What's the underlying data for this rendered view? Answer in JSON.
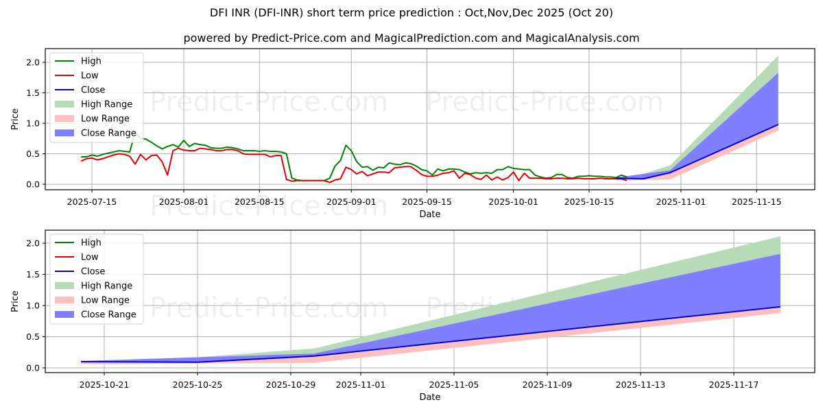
{
  "header": {
    "title": "DFI INR (DFI-INR) short term price prediction : Oct,Nov,Dec 2025 (Oct 20)",
    "subtitle": "powered by Predict-Price.com and MagicalPrediction.com and MagicalAnalysis.com"
  },
  "watermark": "Predict-Price.com",
  "legend": [
    "High",
    "Low",
    "Close",
    "High Range",
    "Low Range",
    "Close Range"
  ],
  "colors": {
    "high": "#008000",
    "low": "#e00000",
    "close": "#0000cc",
    "high_range": "#b7dbb7",
    "low_range": "#ffbfbf",
    "close_range": "#7f7fff"
  },
  "chart_data": [
    {
      "type": "line",
      "title": "DFI INR (DFI-INR) short term price prediction : Oct,Nov,Dec 2025 (Oct 20)",
      "xlabel": "Date",
      "ylabel": "Price",
      "ylim": [
        -0.08,
        2.2
      ],
      "yticks": [
        "0.0",
        "0.5",
        "1.0",
        "1.5",
        "2.0"
      ],
      "xticks": [
        "2025-07-15",
        "2025-08-01",
        "2025-08-15",
        "2025-09-01",
        "2025-09-15",
        "2025-10-01",
        "2025-10-15",
        "2025-11-01",
        "2025-11-15"
      ],
      "grid": true,
      "legend_position": "upper left",
      "series": [
        {
          "name": "High",
          "x_start": "2025-07-13",
          "step_days": 1,
          "values": [
            0.45,
            0.45,
            0.48,
            0.46,
            0.49,
            0.51,
            0.53,
            0.55,
            0.54,
            0.53,
            0.85,
            0.75,
            0.74,
            0.69,
            0.63,
            0.58,
            0.62,
            0.65,
            0.61,
            0.72,
            0.62,
            0.67,
            0.65,
            0.64,
            0.6,
            0.59,
            0.59,
            0.61,
            0.6,
            0.58,
            0.55,
            0.55,
            0.55,
            0.54,
            0.55,
            0.54,
            0.54,
            0.53,
            0.5,
            0.1,
            0.07,
            0.06,
            0.06,
            0.06,
            0.06,
            0.06,
            0.1,
            0.3,
            0.39,
            0.64,
            0.55,
            0.37,
            0.28,
            0.29,
            0.23,
            0.28,
            0.27,
            0.35,
            0.33,
            0.32,
            0.35,
            0.34,
            0.3,
            0.24,
            0.22,
            0.15,
            0.25,
            0.22,
            0.25,
            0.25,
            0.24,
            0.2,
            0.17,
            0.19,
            0.18,
            0.19,
            0.18,
            0.24,
            0.24,
            0.29,
            0.26,
            0.25,
            0.24,
            0.24,
            0.15,
            0.12,
            0.1,
            0.11,
            0.16,
            0.16,
            0.11,
            0.1,
            0.13,
            0.13,
            0.14,
            0.13,
            0.13,
            0.12,
            0.12,
            0.11,
            0.15,
            0.12
          ]
        },
        {
          "name": "Low",
          "x_start": "2025-07-13",
          "step_days": 1,
          "values": [
            0.38,
            0.42,
            0.43,
            0.4,
            0.42,
            0.45,
            0.48,
            0.5,
            0.49,
            0.46,
            0.33,
            0.49,
            0.4,
            0.47,
            0.48,
            0.37,
            0.15,
            0.55,
            0.59,
            0.56,
            0.55,
            0.55,
            0.59,
            0.58,
            0.57,
            0.55,
            0.55,
            0.57,
            0.57,
            0.55,
            0.5,
            0.49,
            0.49,
            0.49,
            0.49,
            0.45,
            0.47,
            0.47,
            0.08,
            0.05,
            0.06,
            0.06,
            0.06,
            0.06,
            0.06,
            0.06,
            0.03,
            0.07,
            0.09,
            0.28,
            0.24,
            0.17,
            0.21,
            0.14,
            0.17,
            0.2,
            0.2,
            0.19,
            0.27,
            0.28,
            0.29,
            0.29,
            0.23,
            0.16,
            0.13,
            0.13,
            0.15,
            0.18,
            0.19,
            0.22,
            0.1,
            0.18,
            0.16,
            0.1,
            0.08,
            0.15,
            0.07,
            0.12,
            0.07,
            0.11,
            0.2,
            0.06,
            0.18,
            0.1,
            0.1,
            0.1,
            0.09,
            0.09,
            0.1,
            0.1,
            0.09,
            0.09,
            0.1,
            0.09,
            0.09,
            0.09,
            0.1,
            0.09,
            0.09,
            0.09,
            0.09,
            0.06
          ]
        },
        {
          "name": "Close",
          "x": [
            "2025-10-20",
            "2025-10-25",
            "2025-10-30",
            "2025-11-19"
          ],
          "values": [
            0.1,
            0.09,
            0.19,
            0.98
          ]
        },
        {
          "name": "High Range",
          "x": [
            "2025-10-20",
            "2025-10-25",
            "2025-10-30",
            "2025-11-19"
          ],
          "lower": [
            0.09,
            0.15,
            0.28,
            1.83
          ],
          "upper": [
            0.11,
            0.17,
            0.31,
            2.11
          ]
        },
        {
          "name": "Low Range",
          "x": [
            "2025-10-20",
            "2025-10-25",
            "2025-10-30",
            "2025-11-19"
          ],
          "lower": [
            0.06,
            0.07,
            0.08,
            0.88
          ],
          "upper": [
            0.1,
            0.09,
            0.19,
            0.98
          ]
        },
        {
          "name": "Close Range",
          "x": [
            "2025-10-20",
            "2025-10-25",
            "2025-10-30",
            "2025-11-19"
          ],
          "lower": [
            0.09,
            0.09,
            0.19,
            0.98
          ],
          "upper": [
            0.11,
            0.17,
            0.23,
            1.83
          ]
        }
      ]
    },
    {
      "type": "line",
      "title": "",
      "xlabel": "Date",
      "ylabel": "Price",
      "ylim": [
        -0.05,
        2.2
      ],
      "yticks": [
        "0.0",
        "0.5",
        "1.0",
        "1.5",
        "2.0"
      ],
      "xticks": [
        "2025-10-21",
        "2025-10-25",
        "2025-10-29",
        "2025-11-01",
        "2025-11-05",
        "2025-11-09",
        "2025-11-13",
        "2025-11-17"
      ],
      "grid": true,
      "legend_position": "upper left",
      "series": [
        {
          "name": "Close",
          "x": [
            "2025-10-20",
            "2025-10-25",
            "2025-10-30",
            "2025-11-19"
          ],
          "values": [
            0.1,
            0.09,
            0.19,
            0.98
          ]
        },
        {
          "name": "High Range",
          "x": [
            "2025-10-20",
            "2025-10-25",
            "2025-10-30",
            "2025-11-19"
          ],
          "lower": [
            0.09,
            0.15,
            0.28,
            1.83
          ],
          "upper": [
            0.11,
            0.17,
            0.31,
            2.11
          ]
        },
        {
          "name": "Low Range",
          "x": [
            "2025-10-20",
            "2025-10-25",
            "2025-10-30",
            "2025-11-19"
          ],
          "lower": [
            0.06,
            0.07,
            0.08,
            0.88
          ],
          "upper": [
            0.1,
            0.09,
            0.19,
            0.98
          ]
        },
        {
          "name": "Close Range",
          "x": [
            "2025-10-20",
            "2025-10-25",
            "2025-10-30",
            "2025-11-19"
          ],
          "lower": [
            0.09,
            0.09,
            0.19,
            0.98
          ],
          "upper": [
            0.11,
            0.17,
            0.23,
            1.83
          ]
        }
      ]
    }
  ]
}
